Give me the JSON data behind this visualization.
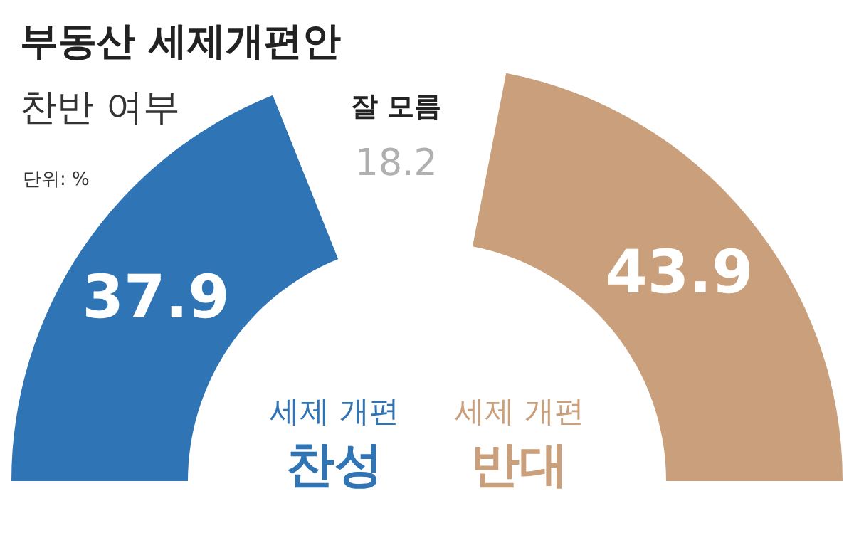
{
  "chart_data": {
    "type": "donut",
    "title": "부동산 세제개편안",
    "subtitle": "찬반 여부",
    "annotations": [
      "단위: %"
    ],
    "categories": [
      "세제 개편\n찬성",
      "잘 모름",
      "세제 개편\n반대"
    ],
    "values": [
      37.9,
      18.2,
      43.9
    ],
    "colors": [
      "#2f74b5",
      "#ffffff",
      "#c9a07b"
    ],
    "data_labels": true
  }
}
